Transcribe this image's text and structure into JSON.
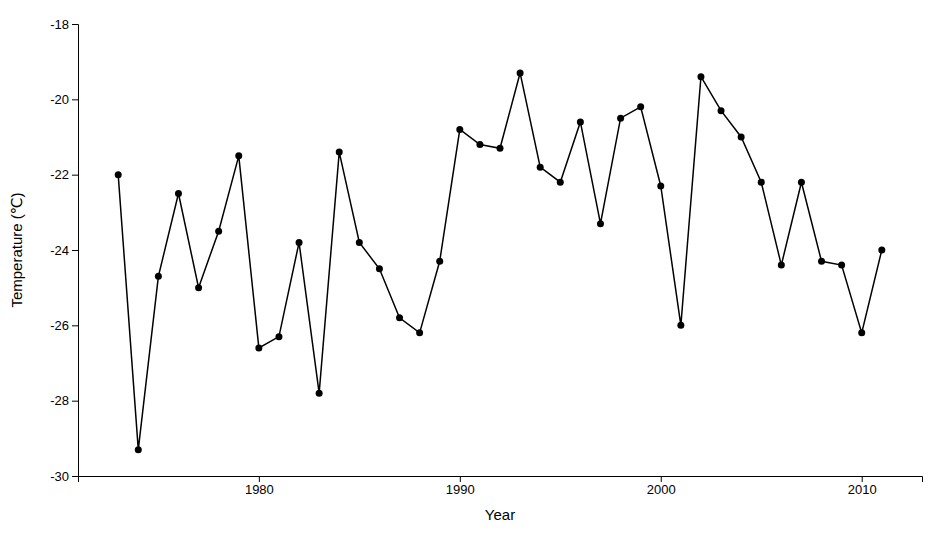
{
  "chart_data": {
    "type": "line",
    "x": [
      1973,
      1974,
      1975,
      1976,
      1977,
      1978,
      1979,
      1980,
      1981,
      1982,
      1983,
      1984,
      1985,
      1986,
      1987,
      1988,
      1989,
      1990,
      1991,
      1992,
      1993,
      1994,
      1995,
      1996,
      1997,
      1998,
      1999,
      2000,
      2001,
      2002,
      2003,
      2004,
      2005,
      2006,
      2007,
      2008,
      2009,
      2010,
      2011
    ],
    "values": [
      -22.0,
      -29.3,
      -24.7,
      -22.5,
      -25.0,
      -23.5,
      -21.5,
      -26.6,
      -26.3,
      -23.8,
      -27.8,
      -21.4,
      -23.8,
      -24.5,
      -25.8,
      -26.2,
      -24.3,
      -20.8,
      -21.2,
      -21.3,
      -19.3,
      -21.8,
      -22.2,
      -20.6,
      -23.3,
      -20.5,
      -20.2,
      -22.3,
      -26.0,
      -19.4,
      -20.3,
      -21.0,
      -22.2,
      -24.4,
      -22.2,
      -24.3,
      -24.4,
      -26.2,
      -24.0
    ],
    "xlabel": "Year",
    "ylabel": "Temperature (℃)",
    "xlim": [
      1971,
      2013
    ],
    "ylim": [
      -30,
      -18
    ],
    "xticks": [
      1980,
      1990,
      2000,
      2010
    ],
    "yticks": [
      -30,
      -28,
      -26,
      -24,
      -22,
      -20,
      -18
    ],
    "color": "#000000",
    "marker": "circle"
  }
}
